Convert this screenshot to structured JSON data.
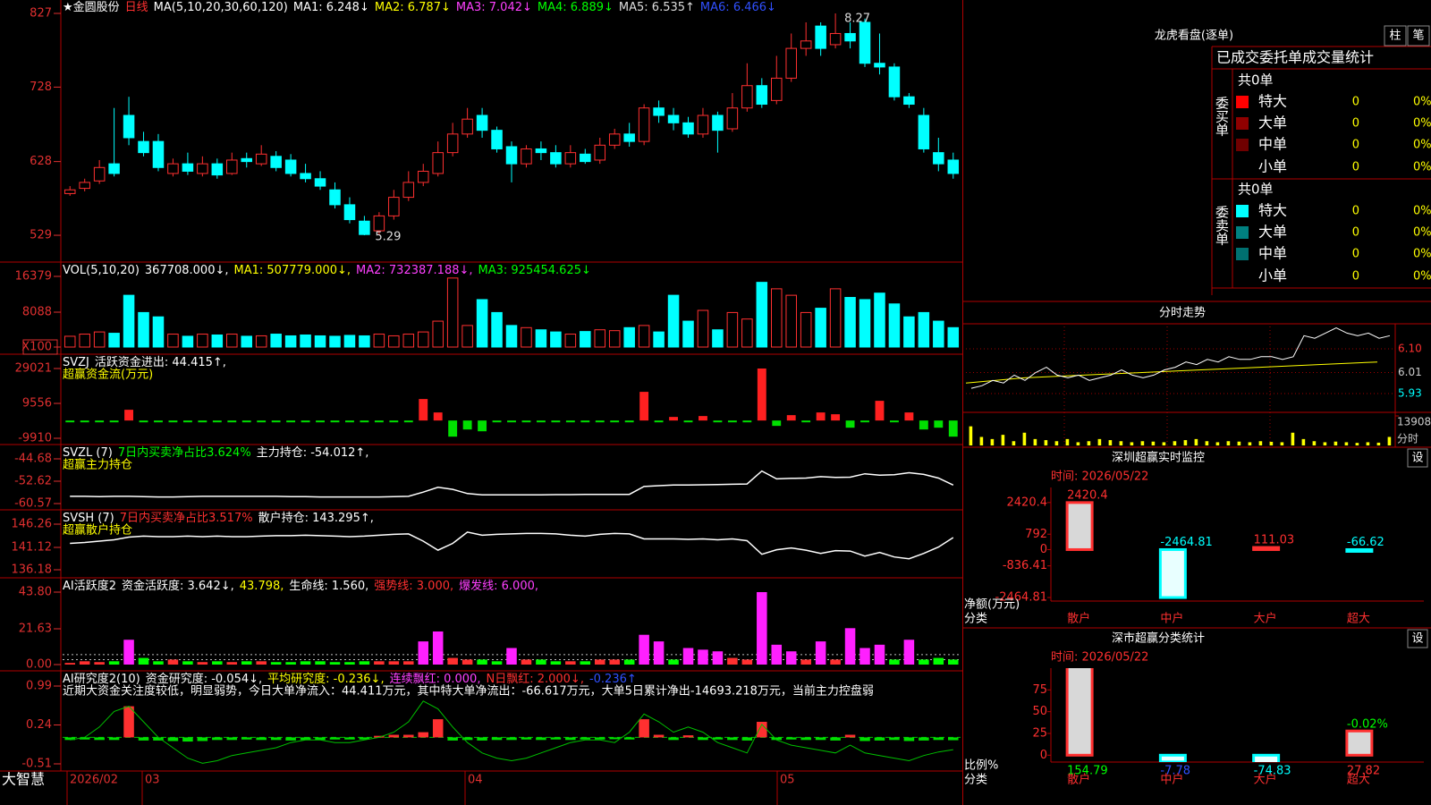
{
  "main": {
    "header": [
      {
        "text": "★金圆股份",
        "color": "#ffffff"
      },
      {
        "text": "日线",
        "color": "#ff3030"
      },
      {
        "text": "MA(5,10,20,30,60,120)",
        "color": "#ffffff"
      },
      {
        "text": "MA1: 6.248↓",
        "color": "#ffffff"
      },
      {
        "text": "MA2: 6.787↓",
        "color": "#ffff00"
      },
      {
        "text": "MA3: 7.042↓",
        "color": "#ff40ff"
      },
      {
        "text": "MA4: 6.889↓",
        "color": "#00ff00"
      },
      {
        "text": "MA5: 6.535↑",
        "color": "#dddddd"
      },
      {
        "text": "MA6: 6.466↓",
        "color": "#3050ff"
      }
    ],
    "high_label": "8.27",
    "low_label": "5.29",
    "up_color": "#ff3030",
    "down_color": "#00ffff",
    "ylim": [
      493,
      845
    ],
    "yticks": [
      827,
      728,
      628,
      529
    ],
    "candles": [
      [
        585,
        590,
        595,
        582
      ],
      [
        592,
        600,
        605,
        588
      ],
      [
        602,
        620,
        630,
        598
      ],
      [
        625,
        612,
        700,
        608
      ],
      [
        690,
        660,
        715,
        650
      ],
      [
        655,
        640,
        668,
        635
      ],
      [
        655,
        620,
        665,
        615
      ],
      [
        612,
        625,
        632,
        608
      ],
      [
        625,
        615,
        640,
        610
      ],
      [
        612,
        625,
        635,
        608
      ],
      [
        625,
        610,
        632,
        605
      ],
      [
        612,
        630,
        640,
        610
      ],
      [
        632,
        628,
        640,
        620
      ],
      [
        625,
        638,
        650,
        622
      ],
      [
        635,
        620,
        642,
        615
      ],
      [
        630,
        612,
        638,
        608
      ],
      [
        612,
        605,
        625,
        600
      ],
      [
        605,
        595,
        615,
        590
      ],
      [
        590,
        570,
        600,
        565
      ],
      [
        570,
        550,
        580,
        545
      ],
      [
        548,
        530,
        555,
        529
      ],
      [
        535,
        555,
        560,
        530
      ],
      [
        555,
        580,
        590,
        550
      ],
      [
        580,
        600,
        615,
        575
      ],
      [
        600,
        615,
        625,
        595
      ],
      [
        612,
        640,
        655,
        608
      ],
      [
        640,
        665,
        680,
        635
      ],
      [
        665,
        685,
        700,
        660
      ],
      [
        690,
        670,
        700,
        660
      ],
      [
        670,
        645,
        675,
        640
      ],
      [
        648,
        625,
        655,
        600
      ],
      [
        625,
        645,
        650,
        620
      ],
      [
        645,
        640,
        655,
        630
      ],
      [
        640,
        625,
        650,
        620
      ],
      [
        625,
        640,
        650,
        620
      ],
      [
        638,
        628,
        645,
        625
      ],
      [
        630,
        650,
        660,
        625
      ],
      [
        650,
        665,
        672,
        645
      ],
      [
        665,
        655,
        680,
        648
      ],
      [
        655,
        700,
        705,
        650
      ],
      [
        700,
        690,
        710,
        680
      ],
      [
        690,
        680,
        700,
        670
      ],
      [
        680,
        665,
        688,
        660
      ],
      [
        665,
        690,
        700,
        660
      ],
      [
        690,
        670,
        695,
        640
      ],
      [
        672,
        700,
        720,
        668
      ],
      [
        700,
        730,
        760,
        695
      ],
      [
        730,
        705,
        740,
        700
      ],
      [
        710,
        740,
        770,
        705
      ],
      [
        740,
        780,
        800,
        735
      ],
      [
        780,
        790,
        815,
        770
      ],
      [
        810,
        780,
        815,
        770
      ],
      [
        785,
        800,
        827,
        780
      ],
      [
        800,
        790,
        815,
        780
      ],
      [
        815,
        760,
        820,
        755
      ],
      [
        760,
        755,
        800,
        745
      ],
      [
        755,
        715,
        760,
        710
      ],
      [
        715,
        705,
        720,
        700
      ],
      [
        690,
        645,
        700,
        640
      ],
      [
        640,
        625,
        660,
        615
      ],
      [
        630,
        612,
        640,
        605
      ]
    ]
  },
  "volume": {
    "header": [
      {
        "text": "VOL(5,10,20)",
        "color": "#ffffff"
      },
      {
        "text": "367708.000↓,",
        "color": "#ffffff"
      },
      {
        "text": "MA1: 507779.000↓,",
        "color": "#ffff00"
      },
      {
        "text": "MA2: 732387.188↓,",
        "color": "#ff40ff"
      },
      {
        "text": "MA3: 925454.625↓",
        "color": "#00ff00"
      }
    ],
    "ylim": [
      -1658,
      19695
    ],
    "yticks": [
      16379,
      8088,
      {
        "value": 0,
        "label": "X100"
      }
    ],
    "values": [
      2500,
      3000,
      3500,
      3200,
      12000,
      8000,
      7000,
      3000,
      2500,
      3000,
      2800,
      3000,
      2500,
      2600,
      3000,
      2600,
      2800,
      2600,
      2500,
      2700,
      2600,
      3000,
      2600,
      3000,
      3500,
      6000,
      16000,
      5000,
      11000,
      8000,
      5000,
      4500,
      4000,
      3500,
      3000,
      3600,
      4000,
      3800,
      4500,
      5000,
      3500,
      12000,
      6000,
      8500,
      4000,
      8000,
      6500,
      15000,
      13500,
      12000,
      8000,
      9000,
      13500,
      11500,
      11000,
      12500,
      10000,
      7000,
      8000,
      6000,
      4500
    ]
  },
  "fund_flow": {
    "header": [
      {
        "text": "SVZJ",
        "color": "#ffffff"
      },
      {
        "text": "活跃资金进出: 44.415↑,",
        "color": "#ffffff"
      }
    ],
    "subtitle": {
      "text": "超赢资金流(万元)",
      "color": "#ffff00"
    },
    "ylim": [
      -13403,
      37005
    ],
    "yticks": [
      29021,
      9556,
      -9910
    ],
    "pos_color": "#ff2020",
    "neg_color": "#00e000",
    "values": [
      -500,
      -400,
      -600,
      -300,
      6000,
      -400,
      -500,
      -300,
      -500,
      -400,
      -300,
      -600,
      -400,
      -300,
      -500,
      -400,
      -300,
      -400,
      -500,
      -300,
      -400,
      -300,
      -500,
      -400,
      12000,
      4500,
      -9000,
      -5000,
      -6000,
      -400,
      -300,
      -500,
      -400,
      -500,
      -300,
      -400,
      -500,
      -300,
      -400,
      16000,
      -500,
      2000,
      -400,
      2500,
      -400,
      -500,
      -300,
      29021,
      -3000,
      3000,
      -500,
      4500,
      3500,
      -4000,
      -500,
      11000,
      -300,
      4500,
      -5000,
      -4000,
      -9000
    ]
  },
  "main_force": {
    "header": [
      {
        "text": "SVZL (7)",
        "color": "#ffffff"
      },
      {
        "text": "7日内买卖净占比3.624%",
        "color": "#00ff00"
      },
      {
        "text": "主力持仓: -54.012↑,",
        "color": "#ffffff"
      }
    ],
    "subtitle": {
      "text": "超赢主力持仓",
      "color": "#ffff00"
    },
    "ylim": [
      -62.79,
      -39.6
    ],
    "yticks": [
      -44.68,
      -52.62,
      -60.57
    ],
    "color": "#ffffff",
    "values": [
      -58.0,
      -58.0,
      -58.1,
      -58.0,
      -58.0,
      -58.1,
      -58.2,
      -58.2,
      -58.1,
      -58.0,
      -58.0,
      -58.0,
      -58.0,
      -58.0,
      -58.0,
      -58.1,
      -58.1,
      -58.2,
      -58.2,
      -58.2,
      -58.2,
      -58.2,
      -58.1,
      -58.0,
      -56.5,
      -54.8,
      -55.5,
      -57.0,
      -57.5,
      -57.5,
      -57.5,
      -57.5,
      -57.5,
      -57.4,
      -57.4,
      -57.3,
      -57.3,
      -57.3,
      -57.3,
      -54.5,
      -54.2,
      -54.0,
      -54.0,
      -53.9,
      -53.8,
      -53.7,
      -53.6,
      -49.0,
      -51.8,
      -51.6,
      -51.5,
      -51.0,
      -51.3,
      -51.2,
      -50.0,
      -50.5,
      -50.3,
      -49.6,
      -50.2,
      -51.5,
      -54.0
    ]
  },
  "retail": {
    "header": [
      {
        "text": "SVSH (7)",
        "color": "#ffffff"
      },
      {
        "text": "7日内买卖净占比3.517%",
        "color": "#ff3030"
      },
      {
        "text": "散户持仓: 143.295↑,",
        "color": "#ffffff"
      }
    ],
    "subtitle": {
      "text": "超赢散户持仓",
      "color": "#ffff00"
    },
    "ylim": [
      134.4,
      149.42
    ],
    "yticks": [
      146.26,
      141.12,
      136.18
    ],
    "color": "#ffffff",
    "values": [
      142.0,
      142.2,
      142.5,
      142.8,
      143.4,
      143.6,
      143.5,
      143.5,
      143.6,
      143.5,
      143.6,
      143.5,
      143.5,
      143.6,
      143.7,
      143.7,
      143.8,
      143.7,
      143.6,
      143.5,
      143.6,
      143.8,
      144.0,
      144.1,
      142.5,
      140.5,
      142.0,
      144.5,
      143.8,
      144.0,
      144.1,
      144.2,
      144.2,
      144.1,
      143.8,
      143.6,
      144.0,
      144.2,
      144.1,
      143.0,
      143.0,
      143.0,
      142.9,
      143.0,
      142.8,
      143.0,
      142.6,
      139.6,
      140.6,
      141.0,
      140.5,
      139.8,
      140.4,
      140.3,
      139.2,
      140.0,
      139.0,
      138.6,
      139.8,
      141.2,
      143.3
    ]
  },
  "activity": {
    "header": [
      {
        "text": "AI活跃度2",
        "color": "#ffffff"
      },
      {
        "text": "资金活跃度: 3.642↓,",
        "color": "#ffffff"
      },
      {
        "text": "43.798,",
        "color": "#ffff00"
      },
      {
        "text": "生命线: 1.560,",
        "color": "#ffffff"
      },
      {
        "text": "强势线: 3.000,",
        "color": "#ff3030"
      },
      {
        "text": "爆发线: 6.000,",
        "color": "#ff40ff"
      }
    ],
    "ylim": [
      -3.79,
      52.45
    ],
    "yticks": [
      {
        "value": 43.8,
        "label": "43.80"
      },
      21.63,
      {
        "value": 0,
        "label": "0.00"
      }
    ],
    "ref_lines": [
      3,
      6
    ],
    "burst_color": "#ff20ff",
    "values": [
      1,
      2,
      1.5,
      2,
      15,
      4,
      2,
      3,
      2,
      1.5,
      2,
      1.5,
      2,
      2,
      1.5,
      1.5,
      2,
      2,
      1.5,
      1.5,
      2,
      2,
      2,
      2,
      14,
      20,
      4,
      3,
      3,
      2,
      10,
      3,
      3,
      2,
      2,
      2,
      3,
      3,
      3,
      18,
      14,
      3,
      10,
      9,
      8,
      4,
      3,
      43.8,
      12,
      8,
      3,
      14,
      3,
      22,
      10,
      12,
      3,
      15,
      3,
      4,
      3
    ]
  },
  "research": {
    "header": [
      {
        "text": "AI研究度2(10)",
        "color": "#ffffff"
      },
      {
        "text": "资金研究度: -0.054↓,",
        "color": "#ffffff"
      },
      {
        "text": "平均研究度: -0.236↓,",
        "color": "#ffff00"
      },
      {
        "text": "连续飘红: 0.000,",
        "color": "#ff40ff"
      },
      {
        "text": "N日飘红: 2.000↓,",
        "color": "#ff3030"
      },
      {
        "text": "-0.236↑",
        "color": "#3050ff"
      }
    ],
    "subtitle": {
      "text": "近期大资金关注度较低，明显弱势，今日大单净流入：44.411万元，其中特大单净流出：-66.617万元，大单5日累计净出-14693.218万元，当前主力控盘弱",
      "color": "#ffffff"
    },
    "ylim": [
      -0.648,
      1.283
    ],
    "yticks": [
      0.99,
      0.24,
      -0.51
    ],
    "line_color": "#00c000",
    "values": [
      -0.05,
      -0.04,
      -0.05,
      -0.05,
      0.6,
      -0.06,
      -0.06,
      -0.07,
      -0.08,
      -0.07,
      -0.05,
      -0.05,
      -0.04,
      -0.05,
      -0.05,
      -0.06,
      -0.05,
      -0.05,
      -0.04,
      -0.04,
      -0.04,
      0.03,
      0.05,
      0.05,
      0.1,
      0.35,
      -0.06,
      -0.05,
      -0.06,
      -0.05,
      -0.05,
      -0.04,
      -0.05,
      -0.04,
      -0.05,
      -0.04,
      -0.04,
      -0.03,
      -0.04,
      0.35,
      0.05,
      -0.05,
      0.04,
      -0.05,
      -0.04,
      -0.05,
      -0.06,
      0.3,
      -0.05,
      -0.04,
      -0.05,
      -0.05,
      -0.06,
      0.05,
      -0.07,
      -0.06,
      -0.05,
      -0.07,
      -0.06,
      -0.05,
      -0.054
    ],
    "line": [
      -0.05,
      0.0,
      0.2,
      0.5,
      0.6,
      0.3,
      0.0,
      -0.2,
      -0.4,
      -0.5,
      -0.45,
      -0.35,
      -0.3,
      -0.25,
      -0.2,
      -0.1,
      -0.05,
      -0.05,
      -0.1,
      -0.1,
      -0.05,
      0.0,
      0.1,
      0.3,
      0.7,
      0.55,
      0.2,
      -0.1,
      -0.3,
      -0.4,
      -0.45,
      -0.4,
      -0.3,
      -0.2,
      -0.1,
      -0.05,
      -0.05,
      -0.1,
      0.1,
      0.45,
      0.3,
      0.1,
      0.2,
      0.1,
      -0.1,
      -0.2,
      -0.3,
      0.25,
      -0.05,
      -0.15,
      -0.2,
      -0.25,
      -0.3,
      -0.15,
      -0.3,
      -0.35,
      -0.4,
      -0.45,
      -0.35,
      -0.28,
      -0.236
    ]
  },
  "bottom": {
    "brand": "大智慧",
    "dates": [
      "2026/02",
      "03",
      "04",
      "05"
    ]
  },
  "dragon": {
    "title": "龙虎看盘(逐单)",
    "buttons": [
      "柱",
      "笔"
    ],
    "subtitle": "已成交委托单成交量统计",
    "buy": {
      "side": "委买单",
      "total": "共0单",
      "rows": [
        {
          "label": "特大",
          "count": "0",
          "pct": "0%",
          "color": "#ff0000"
        },
        {
          "label": "大单",
          "count": "0",
          "pct": "0%",
          "color": "#900000"
        },
        {
          "label": "中单",
          "count": "0",
          "pct": "0%",
          "color": "#700000"
        },
        {
          "label": "小单",
          "count": "0",
          "pct": "0%",
          "color": null
        }
      ]
    },
    "sell": {
      "side": "委卖单",
      "total": "共0单",
      "rows": [
        {
          "label": "特大",
          "count": "0",
          "pct": "0%",
          "color": "#00ffff"
        },
        {
          "label": "大单",
          "count": "0",
          "pct": "0%",
          "color": "#008080"
        },
        {
          "label": "中单",
          "count": "0",
          "pct": "0%",
          "color": "#007070"
        },
        {
          "label": "小单",
          "count": "0",
          "pct": "0%",
          "color": null
        }
      ]
    }
  },
  "minute": {
    "title": "分时走势",
    "ylim": [
      5.913,
      6.185
    ],
    "yticks": [
      {
        "value": 6.1,
        "label": "6.10"
      },
      6.01,
      5.93
    ],
    "vol_ylim": [
      0,
      13908
    ],
    "vol_tick": 13908,
    "vol_label": "分时",
    "price": [
      5.95,
      5.96,
      5.98,
      5.97,
      6.0,
      5.98,
      6.01,
      6.03,
      6.0,
      5.99,
      6.0,
      5.98,
      5.99,
      6.0,
      6.02,
      6.0,
      5.99,
      6.0,
      6.02,
      6.03,
      6.05,
      6.04,
      6.06,
      6.05,
      6.07,
      6.06,
      6.06,
      6.07,
      6.07,
      6.06,
      6.07,
      6.15,
      6.14,
      6.16,
      6.18,
      6.16,
      6.15,
      6.16,
      6.14,
      6.15
    ],
    "avg": [
      5.97,
      5.99,
      6.0,
      6.01,
      6.02,
      6.03,
      6.04,
      6.05
    ],
    "volume": [
      9000,
      4000,
      3000,
      5000,
      2000,
      6000,
      3000,
      2500,
      2000,
      3000,
      1500,
      2000,
      3000,
      2500,
      2000,
      1500,
      2000,
      1800,
      1500,
      2000,
      2500,
      3000,
      2000,
      1500,
      2000,
      1800,
      1500,
      2000,
      1700,
      1500,
      6000,
      3000,
      2000,
      1500,
      1800,
      1500,
      1200,
      1500,
      1300,
      4000
    ]
  },
  "sz_monitor": {
    "title": "深圳超赢实时监控",
    "button": "设",
    "time": "时间: 2026/05/22",
    "ylabel": "净额(万元)",
    "xlabel": "分类",
    "categories": [
      "散户",
      "中户",
      "大户",
      "超大"
    ],
    "values": [
      2420.4,
      -2464.81,
      111.03,
      -66.62
    ],
    "label_colors": [
      "#ff3030",
      "#00ffff",
      "#ff3030",
      "#00ffff"
    ],
    "ylim": [
      -2647,
      3196
    ],
    "yticks": [
      2420.4,
      792,
      0,
      -836.41,
      -2464.81
    ]
  },
  "sz_stats": {
    "title": "深市超赢分类统计",
    "button": "设",
    "time": "时间: 2026/05/22",
    "ylabel": "比例%",
    "xlabel": "分类",
    "note": "-0.02%",
    "categories": [
      "散户",
      "中户",
      "大户",
      "超大"
    ],
    "values": [
      154.79,
      -7.78,
      -74.83,
      27.82
    ],
    "label_colors": [
      "#00ff00",
      "#3050ff",
      "#00ffff",
      "#ff3030"
    ],
    "ylim": [
      -7.9,
      100
    ],
    "yticks": [
      75,
      50,
      25,
      0
    ]
  }
}
